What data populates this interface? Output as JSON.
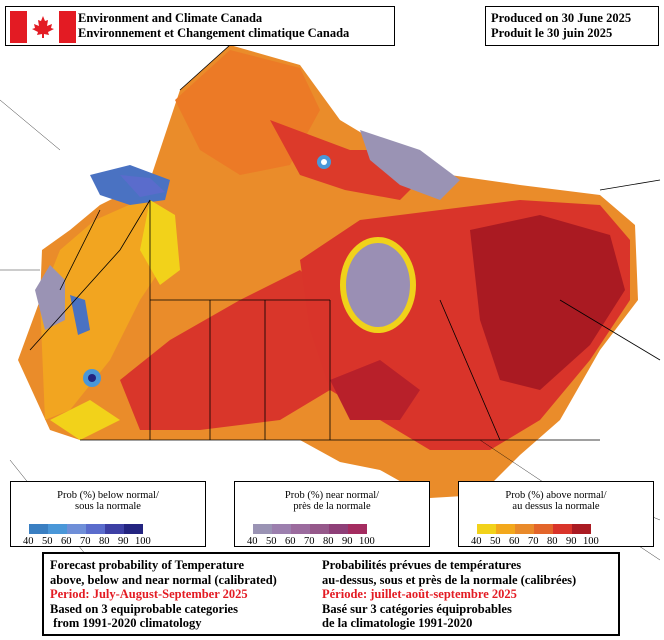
{
  "header": {
    "agency_en": "Environment and Climate Canada",
    "agency_fr": "Environnement et Changement climatique Canada",
    "produced_en": "Produced on 30 June 2025",
    "produced_fr": "Produit le 30 juin 2025"
  },
  "legends": [
    {
      "title_en": "Prob (%) below normal/",
      "title_fr": "sous la normale",
      "ticks": [
        "40",
        "50",
        "60",
        "70",
        "80",
        "90",
        "100"
      ],
      "colors": [
        "#3a7fc2",
        "#4a97d8",
        "#6f8fd8",
        "#5a6ccc",
        "#3c3fa4",
        "#232480"
      ]
    },
    {
      "title_en": "Prob (%) near normal/",
      "title_fr": "près de la normale",
      "ticks": [
        "40",
        "50",
        "60",
        "70",
        "80",
        "90",
        "100"
      ],
      "colors": [
        "#9a93b4",
        "#9c7fae",
        "#9b6b9e",
        "#95588a",
        "#8e3f78",
        "#a42c60"
      ]
    },
    {
      "title_en": "Prob (%) above normal/",
      "title_fr": "au dessus la normale",
      "ticks": [
        "40",
        "50",
        "60",
        "70",
        "80",
        "90",
        "100"
      ],
      "colors": [
        "#f2d21a",
        "#f3a81c",
        "#e98a2a",
        "#e3652a",
        "#d9342a",
        "#aa1a22"
      ]
    }
  ],
  "info": {
    "en": {
      "line1": "Forecast probability of Temperature",
      "line2": "above, below and near normal (calibrated)",
      "period": "Period: July-August-September 2025",
      "line4": "Based on 3 equiprobable categories",
      "line5": " from 1991-2020 climatology"
    },
    "fr": {
      "line1": "Probabilités prévues de températures",
      "line2": "au-dessus, sous et près de la normale (calibrées)",
      "period": "Période: juillet-août-septembre 2025",
      "line4": "Basé sur 3 catégories équiprobables",
      "line5": "de la climatologie 1991-2020"
    }
  },
  "colors": {
    "flag_red": "#e31b23",
    "period_red": "#e31b23"
  }
}
